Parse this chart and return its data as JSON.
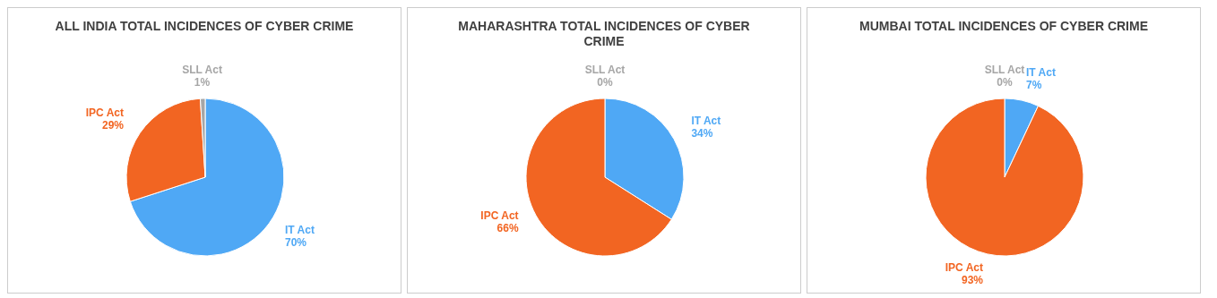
{
  "chart_data": [
    {
      "type": "pie",
      "title": "ALL INDIA TOTAL INCIDENCES OF CYBER CRIME",
      "categories": [
        "IT Act",
        "IPC Act",
        "SLL Act"
      ],
      "values": [
        70,
        29,
        1
      ],
      "value_labels": [
        "70%",
        "29%",
        "1%"
      ],
      "colors": [
        "#4fa8f5",
        "#f26522",
        "#a6a6a6"
      ]
    },
    {
      "type": "pie",
      "title": "MAHARASHTRA TOTAL INCIDENCES OF CYBER CRIME",
      "categories": [
        "IT Act",
        "IPC Act",
        "SLL Act"
      ],
      "values": [
        34,
        66,
        0
      ],
      "value_labels": [
        "34%",
        "66%",
        "0%"
      ],
      "colors": [
        "#4fa8f5",
        "#f26522",
        "#a6a6a6"
      ]
    },
    {
      "type": "pie",
      "title": "MUMBAI TOTAL INCIDENCES OF CYBER CRIME",
      "categories": [
        "IT Act",
        "IPC Act",
        "SLL Act"
      ],
      "values": [
        7,
        93,
        0
      ],
      "value_labels": [
        "7%",
        "93%",
        "0%"
      ],
      "colors": [
        "#4fa8f5",
        "#f26522",
        "#a6a6a6"
      ]
    }
  ]
}
